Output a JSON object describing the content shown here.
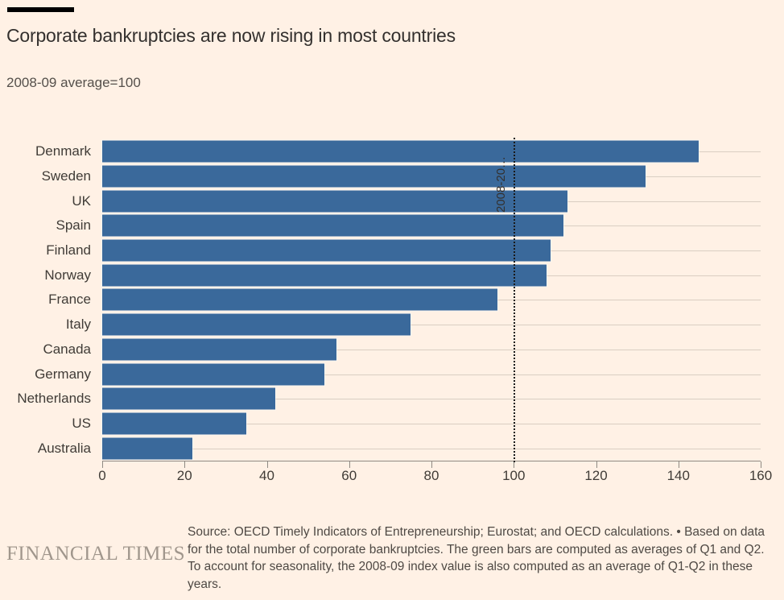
{
  "header": {
    "title": "Corporate bankruptcies are now rising in most countries",
    "subtitle": "2008-09 average=100"
  },
  "chart_data": {
    "type": "bar",
    "orientation": "horizontal",
    "title": "Corporate bankruptcies are now rising in most countries",
    "subtitle": "2008-09 average=100",
    "xlabel": "",
    "ylabel": "",
    "xlim": [
      0,
      160
    ],
    "x_ticks": [
      0,
      20,
      40,
      60,
      80,
      100,
      120,
      140,
      160
    ],
    "grid": "horizontal-row-lines",
    "legend": "none",
    "categories": [
      "Denmark",
      "Sweden",
      "UK",
      "Spain",
      "Finland",
      "Norway",
      "France",
      "Italy",
      "Canada",
      "Germany",
      "Netherlands",
      "US",
      "Australia"
    ],
    "values": [
      145,
      132,
      113,
      112,
      109,
      108,
      96,
      75,
      57,
      54,
      42,
      35,
      22
    ],
    "reference_line": {
      "value": 100,
      "label": "2008-20…",
      "style": "dotted"
    }
  },
  "footer": {
    "logo": "FINANCIAL TIMES",
    "source": "Source: OECD Timely Indicators of Entrepreneurship; Eurostat; and OECD calculations. • Based on data for the total number of corporate bankruptcies. The green bars are computed as averages of Q1 and Q2. To account for seasonality, the 2008-09 index value is also computed as an average of Q1-Q2 in these years."
  },
  "colors": {
    "background": "#FFF1E5",
    "bar": "#3A699B",
    "grid_line": "#D9CEC2",
    "axis_line": "#8F8A83",
    "reference_line": "#1A1A1A",
    "text_dark": "#33302E",
    "text_muted": "#55504B",
    "logo_gray": "#A0968C",
    "top_rule": "#000000"
  }
}
